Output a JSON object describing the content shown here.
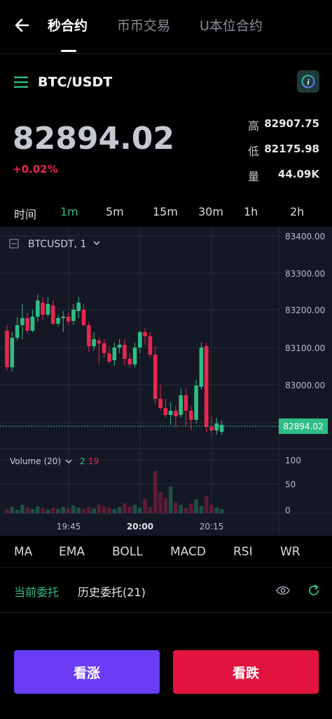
{
  "top_tabs": [
    "秒合约",
    "币币交易",
    "U本位合约"
  ],
  "active_tab_index": 0,
  "pair": "BTC/USDT",
  "price": "82894.02",
  "change": "+0.02%",
  "stats": [
    {
      "label": "高",
      "value": "82907.75"
    },
    {
      "label": "低",
      "value": "82175.98"
    },
    {
      "label": "量",
      "value": "44.09K"
    }
  ],
  "intervals": [
    "时间",
    "1m",
    "5m",
    "15m",
    "30m",
    "1h",
    "2h"
  ],
  "selected_interval": "1m",
  "chart": {
    "symbol_label": "BTCUSDT, 1",
    "price_ticks": [
      "83400.00",
      "83300.00",
      "83200.00",
      "83100.00",
      "83000.00"
    ],
    "last_price_tag": "82894.02",
    "volume_label": "Volume (20)",
    "volume_green": "2",
    "volume_red": "19",
    "volume_ticks": [
      "100",
      "50",
      "0"
    ],
    "time_ticks": [
      "19:45",
      "20:00",
      "20:15"
    ]
  },
  "indicators": [
    "MA",
    "EMA",
    "BOLL",
    "MACD",
    "RSI",
    "WR"
  ],
  "orders": {
    "current": "当前委托",
    "history": "历史委托(21)"
  },
  "buttons": {
    "up": "看涨",
    "down": "看跌"
  },
  "colors": {
    "up": "#2ebd85",
    "down": "#e8264f",
    "buy_button": "#6a3df4",
    "sell_button": "#e0143f"
  },
  "icons": {
    "back": "back-arrow-icon",
    "menu": "menu-icon",
    "info": "info-icon",
    "eye": "eye-icon",
    "refresh": "refresh-icon"
  }
}
